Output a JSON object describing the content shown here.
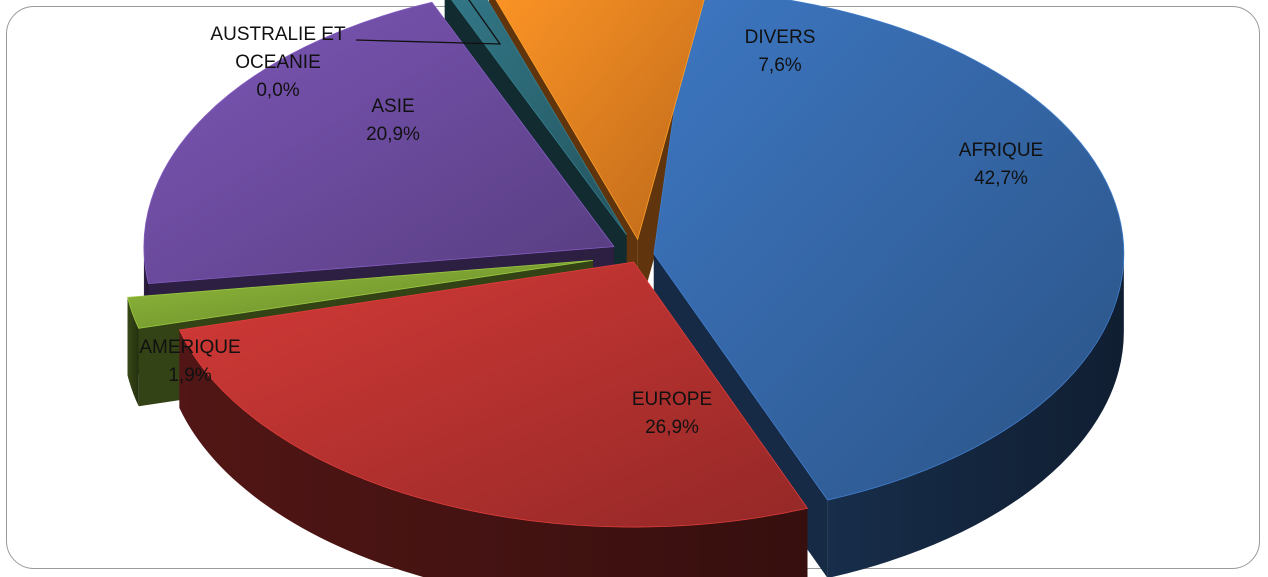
{
  "chart_data": {
    "type": "pie",
    "three_d": true,
    "exploded": true,
    "title": "",
    "legend": "none",
    "slices": [
      {
        "category": "AFRIQUE",
        "lines": [
          "AFRIQUE"
        ],
        "label_text": "42,7%",
        "value": 42.7,
        "color": "#3465a4"
      },
      {
        "category": "EUROPE",
        "lines": [
          "EUROPE"
        ],
        "label_text": "26,9%",
        "value": 26.9,
        "color": "#b4312f"
      },
      {
        "category": "AMERIQUE",
        "lines": [
          "AMERIQUE"
        ],
        "label_text": "1,9%",
        "value": 1.9,
        "color": "#7ba032"
      },
      {
        "category": "ASIE",
        "lines": [
          "ASIE"
        ],
        "label_text": "20,9%",
        "value": 20.9,
        "color": "#6a4a9c"
      },
      {
        "category": "AUSTRALIE ET OCEANIE",
        "lines": [
          "AUSTRALIE ET",
          "OCEANIE"
        ],
        "label_text": "0,0%",
        "value": 0.0,
        "color": "#2b6673"
      },
      {
        "category": "DIVERS",
        "lines": [
          "DIVERS"
        ],
        "label_text": "7,6%",
        "value": 7.6,
        "color": "#e57f20"
      }
    ]
  }
}
